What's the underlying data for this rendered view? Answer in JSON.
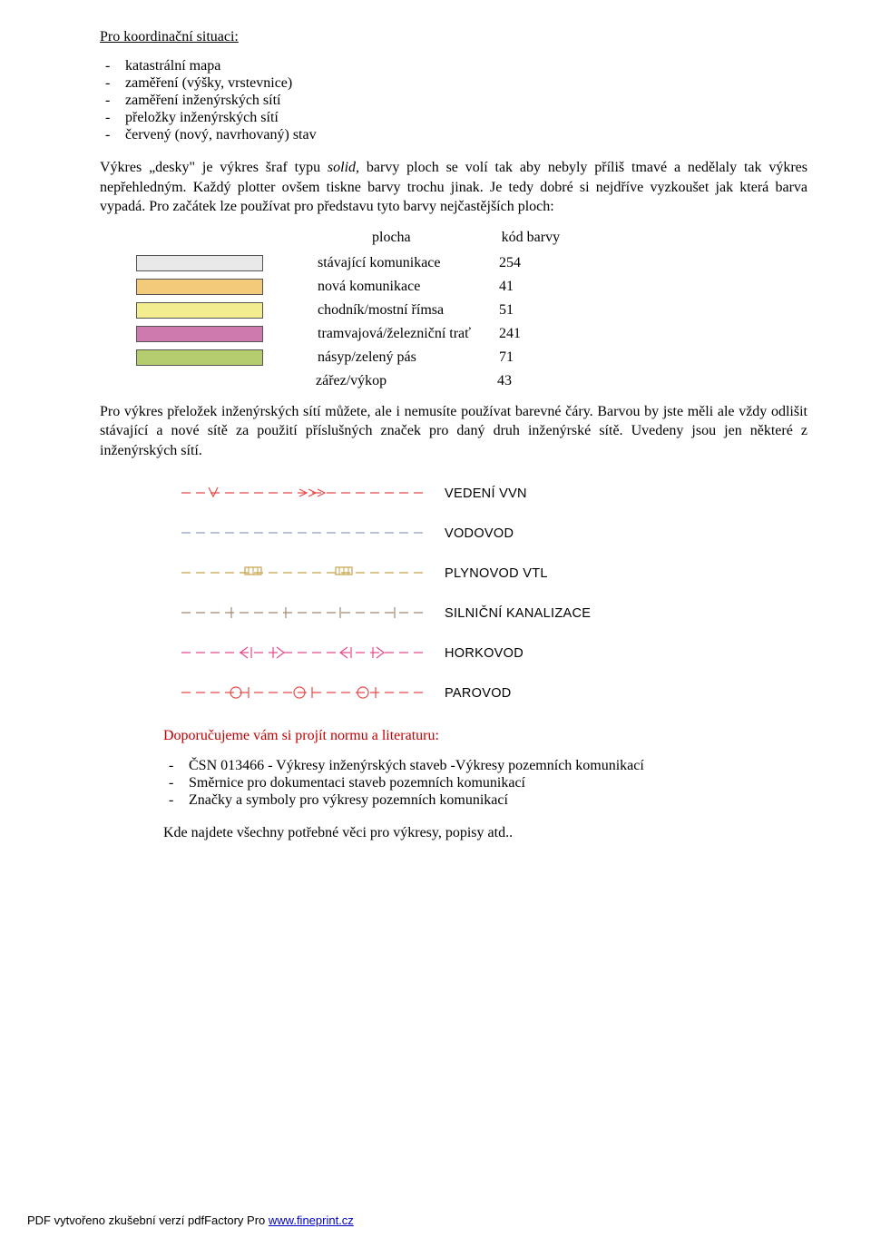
{
  "heading": "Pro koordinační situaci:",
  "bullet_list_1": [
    "katastrální mapa",
    "zaměření (výšky, vrstevnice)",
    "zaměření inženýrských sítí",
    "přeložky inženýrských sítí",
    "červený (nový, navrhovaný) stav"
  ],
  "para_intro_pre": "Výkres „desky\" je výkres šraf typu ",
  "para_intro_italic": "solid,",
  "para_intro_post": " barvy ploch se volí tak aby nebyly příliš tmavé a nedělaly tak výkres nepřehledným. Každý plotter ovšem tiskne barvy trochu jinak. Je tedy dobré si nejdříve vyzkoušet jak která barva vypadá. Pro začátek lze používat pro představu tyto barvy nejčastějších ploch:",
  "color_table": {
    "header_plocha": "plocha",
    "header_kod": "kód barvy",
    "rows": [
      {
        "label": "stávající komunikace",
        "code": "254",
        "swatch": "#e9e9e9"
      },
      {
        "label": "nová komunikace",
        "code": "41",
        "swatch": "#f3ca7a"
      },
      {
        "label": "chodník/mostní římsa",
        "code": "51",
        "swatch": "#f2ee90"
      },
      {
        "label": "tramvajová/železniční trať",
        "code": "241",
        "swatch": "#cf7aae"
      },
      {
        "label": "násyp/zelený pás",
        "code": "71",
        "swatch": "#b6cd6f"
      },
      {
        "label": "zářez/výkop",
        "code": "43",
        "swatch": null
      }
    ]
  },
  "para_after_table": "Pro výkres přeložek inženýrských sítí můžete, ale i nemusíte používat barevné čáry. Barvou by jste měli ale vždy odlišit stávající a nové sítě za použití příslušných značek pro daný druh inženýrské sítě. Uvedeny jsou jen některé z inženýrských sítí.",
  "networks": [
    {
      "label": "VEDENÍ VVN",
      "color": "#e74a4a",
      "type": "vvn"
    },
    {
      "label": "VODOVOD",
      "color": "#90a0c0",
      "type": "vodovod"
    },
    {
      "label": "PLYNOVOD VTL",
      "color": "#c6a34a",
      "type": "plynovod"
    },
    {
      "label": "SILNIČNÍ KANALIZACE",
      "color": "#a08870",
      "type": "kanalizace"
    },
    {
      "label": "HORKOVOD",
      "color": "#e74a8f",
      "type": "horkovod"
    },
    {
      "label": "PAROVOD",
      "color": "#e74a4a",
      "type": "parovod"
    }
  ],
  "recommend_heading": "Doporučujeme vám si projít normu a literaturu:",
  "bullet_list_2": [
    "ČSN 013466 - Výkresy inženýrských staveb -Výkresy pozemních komunikací",
    "Směrnice pro dokumentaci staveb pozemních komunikací",
    "Značky a symboly pro výkresy pozemních komunikací"
  ],
  "closing": "Kde najdete všechny potřebné věci pro výkresy, popisy atd..",
  "footer_text": "PDF vytvořeno zkušební verzí pdfFactory Pro ",
  "footer_link_text": "www.fineprint.cz"
}
